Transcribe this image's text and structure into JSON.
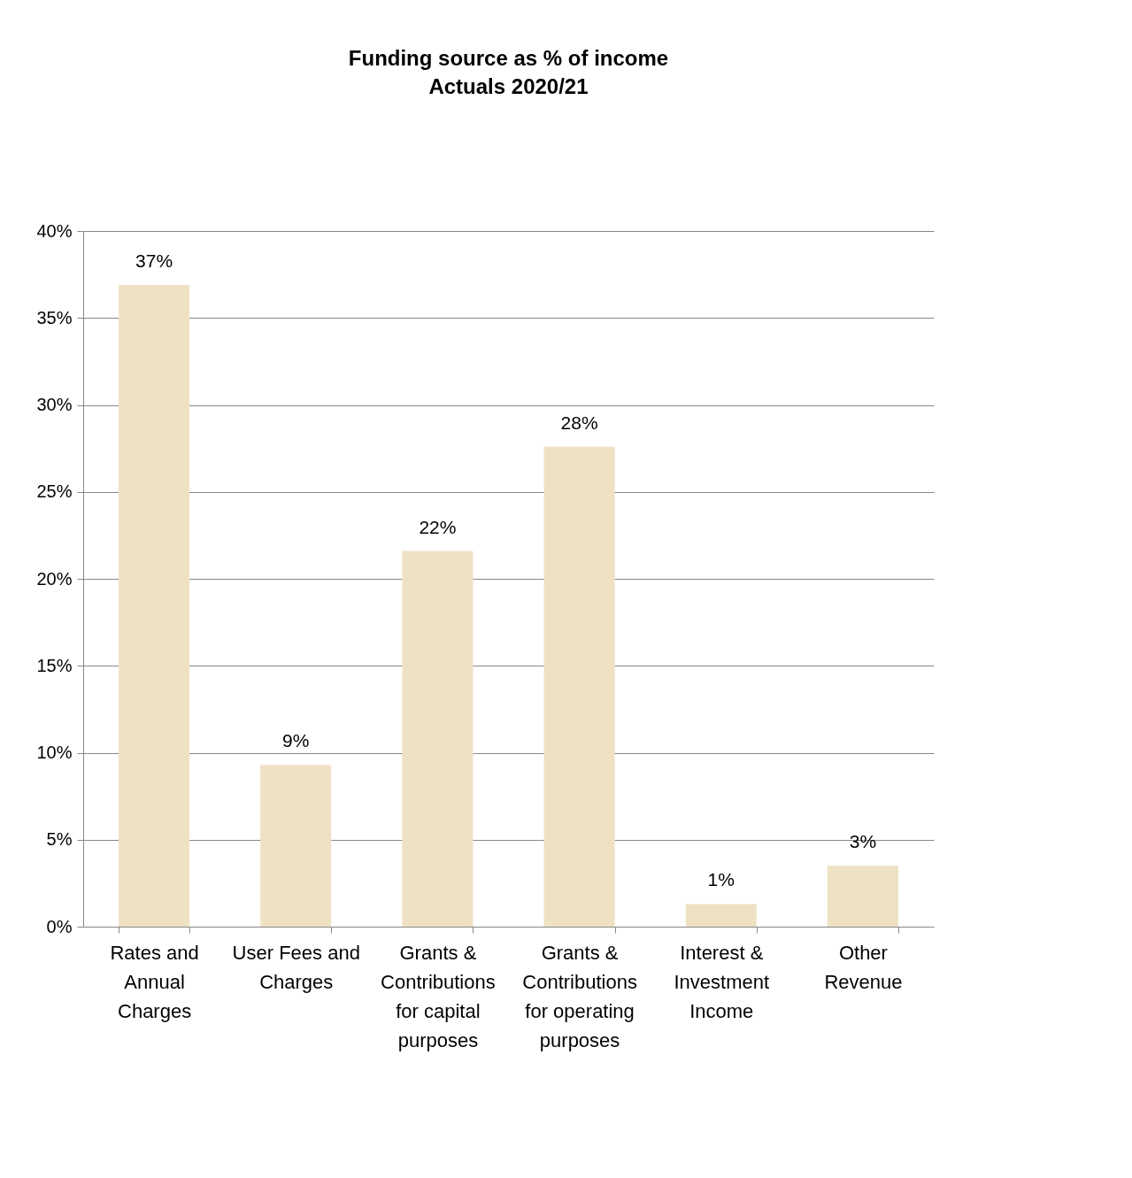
{
  "chart_data": {
    "type": "bar",
    "title": "Funding source as % of income",
    "subtitle": "Actuals 2020/21",
    "categories": [
      "Rates and Annual Charges",
      "User Fees and Charges",
      "Grants & Contributions for capital purposes",
      "Grants & Contributions for operating purposes",
      "Interest & Investment Income",
      "Other Revenue"
    ],
    "values": [
      36.9,
      9.3,
      21.6,
      27.6,
      1.3,
      3.5
    ],
    "value_labels": [
      "37%",
      "9%",
      "22%",
      "28%",
      "1%",
      "3%"
    ],
    "color": "#efe2c4",
    "ylim": [
      0,
      40
    ],
    "yticks": [
      {
        "value": 0,
        "label": "0%"
      },
      {
        "value": 5,
        "label": "5%"
      },
      {
        "value": 10,
        "label": "10%"
      },
      {
        "value": 15,
        "label": "15%"
      },
      {
        "value": 20,
        "label": "20%"
      },
      {
        "value": 25,
        "label": "25%"
      },
      {
        "value": 30,
        "label": "30%"
      },
      {
        "value": 35,
        "label": "35%"
      },
      {
        "value": 40,
        "label": "40%"
      }
    ],
    "grid": "y"
  }
}
